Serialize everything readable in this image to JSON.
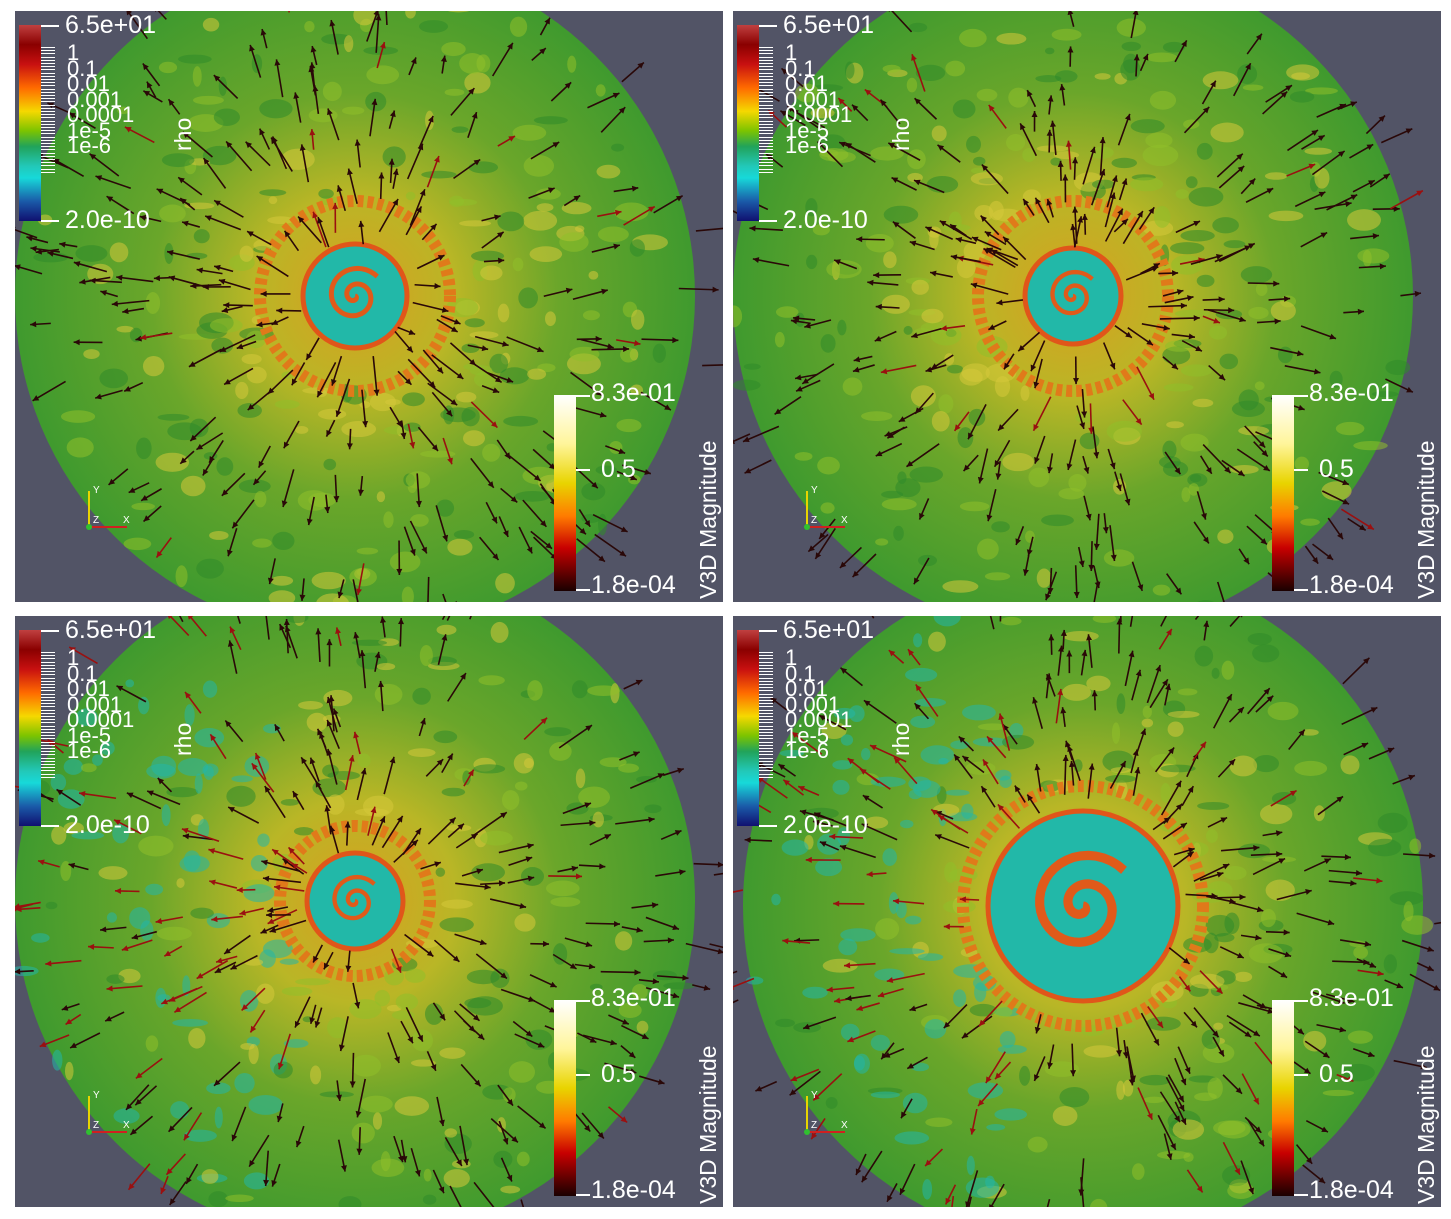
{
  "panels": [
    {
      "id": "top-left",
      "rho_bar": {
        "title": "rho",
        "max": "6.5e+01",
        "min": "2.0e-10",
        "ticks": [
          "1",
          "0.1",
          "0.01",
          "0.001",
          "0.0001",
          "1e-5",
          "1e-6"
        ]
      },
      "v_bar": {
        "title": "V3D Magnitude",
        "max": "8.3e-01",
        "mid": "0.5",
        "min": "1.8e-04"
      },
      "axes": {
        "x": "X",
        "y": "Y",
        "z": "Z"
      }
    },
    {
      "id": "top-right",
      "rho_bar": {
        "title": "rho",
        "max": "6.5e+01",
        "min": "2.0e-10",
        "ticks": [
          "1",
          "0.1",
          "0.01",
          "0.001",
          "0.0001",
          "1e-5",
          "1e-6"
        ]
      },
      "v_bar": {
        "title": "V3D Magnitude",
        "max": "8.3e-01",
        "mid": "0.5",
        "min": "1.8e-04"
      },
      "axes": {
        "x": "X",
        "y": "Y",
        "z": "Z"
      }
    },
    {
      "id": "bottom-left",
      "rho_bar": {
        "title": "rho",
        "max": "6.5e+01",
        "min": "2.0e-10",
        "ticks": [
          "1",
          "0.1",
          "0.01",
          "0.001",
          "0.0001",
          "1e-5",
          "1e-6"
        ]
      },
      "v_bar": {
        "title": "V3D Magnitude",
        "max": "8.3e-01",
        "mid": "0.5",
        "min": "1.8e-04"
      },
      "axes": {
        "x": "X",
        "y": "Y",
        "z": "Z"
      }
    },
    {
      "id": "bottom-right",
      "rho_bar": {
        "title": "rho",
        "max": "6.5e+01",
        "min": "2.0e-10",
        "ticks": [
          "1",
          "0.1",
          "0.01",
          "0.001",
          "0.0001",
          "1e-5",
          "1e-6"
        ]
      },
      "v_bar": {
        "title": "V3D Magnitude",
        "max": "8.3e-01",
        "mid": "0.5",
        "min": "1.8e-04"
      },
      "axes": {
        "x": "X",
        "y": "Y",
        "z": "Z"
      }
    }
  ],
  "colors": {
    "background": "#525466",
    "disk": "#3f9a2e",
    "ring": "#d8a020",
    "core": "#e05a1a",
    "cavity": "#22b8a8",
    "arrow_dark": "#2a0808",
    "arrow_red": "#9a1010"
  }
}
